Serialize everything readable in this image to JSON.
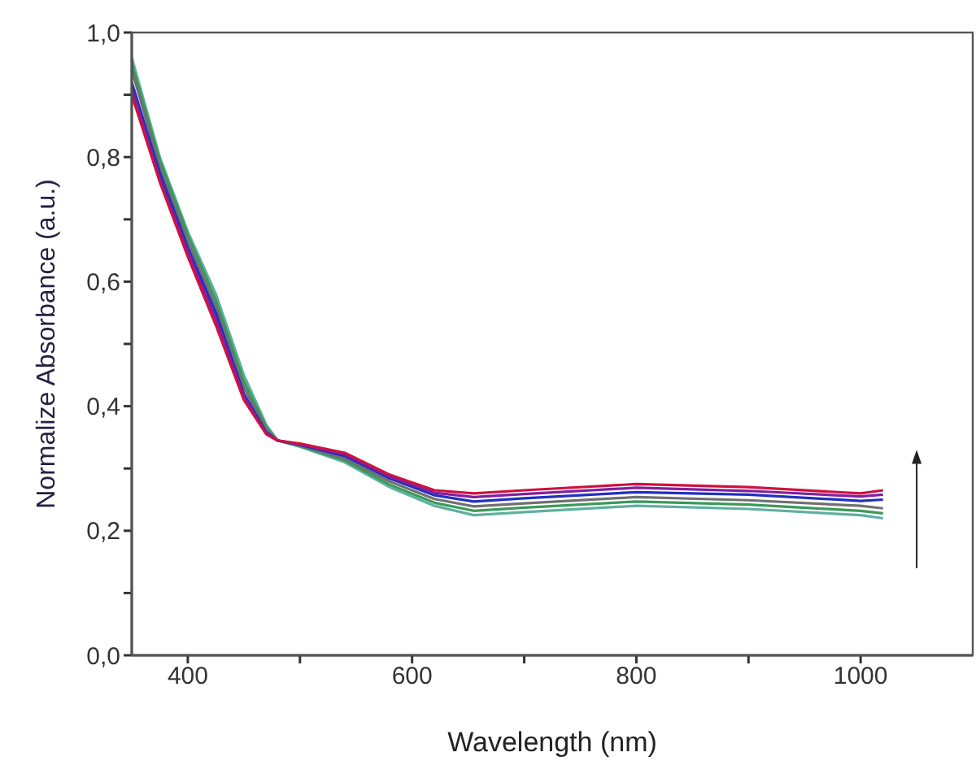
{
  "chart_data": {
    "type": "line",
    "xlabel": "Wavelength (nm)",
    "ylabel": "Normalize Absorbance (a.u.)",
    "x": [
      350,
      375,
      400,
      425,
      450,
      470,
      480,
      500,
      540,
      580,
      620,
      655,
      700,
      800,
      900,
      1000,
      1020
    ],
    "series": [
      {
        "color": "#5fb0a0",
        "values": [
          0.96,
          0.8,
          0.68,
          0.58,
          0.45,
          0.37,
          0.345,
          0.335,
          0.31,
          0.27,
          0.24,
          0.225,
          0.23,
          0.24,
          0.235,
          0.225,
          0.22
        ]
      },
      {
        "color": "#3a9a5a",
        "values": [
          0.95,
          0.795,
          0.675,
          0.57,
          0.44,
          0.366,
          0.345,
          0.336,
          0.313,
          0.274,
          0.245,
          0.232,
          0.237,
          0.247,
          0.242,
          0.232,
          0.228
        ]
      },
      {
        "color": "#707070",
        "values": [
          0.94,
          0.785,
          0.665,
          0.56,
          0.43,
          0.362,
          0.345,
          0.337,
          0.316,
          0.279,
          0.251,
          0.239,
          0.244,
          0.254,
          0.249,
          0.24,
          0.236
        ]
      },
      {
        "color": "#2030c0",
        "values": [
          0.92,
          0.775,
          0.655,
          0.55,
          0.42,
          0.358,
          0.345,
          0.338,
          0.32,
          0.284,
          0.257,
          0.247,
          0.252,
          0.262,
          0.258,
          0.248,
          0.25
        ]
      },
      {
        "color": "#8020a0",
        "values": [
          0.91,
          0.765,
          0.648,
          0.54,
          0.415,
          0.356,
          0.345,
          0.339,
          0.323,
          0.287,
          0.261,
          0.254,
          0.259,
          0.269,
          0.264,
          0.255,
          0.258
        ]
      },
      {
        "color": "#d01040",
        "values": [
          0.9,
          0.76,
          0.64,
          0.53,
          0.41,
          0.355,
          0.345,
          0.34,
          0.325,
          0.29,
          0.265,
          0.26,
          0.265,
          0.275,
          0.27,
          0.26,
          0.265
        ]
      }
    ],
    "xlim": [
      350,
      1100
    ],
    "xticks": [
      {
        "value": 400,
        "label": "400"
      },
      {
        "value": 500,
        "label": null
      },
      {
        "value": 600,
        "label": "600"
      },
      {
        "value": 700,
        "label": null
      },
      {
        "value": 800,
        "label": "800"
      },
      {
        "value": 900,
        "label": null
      },
      {
        "value": 1000,
        "label": "1000"
      }
    ],
    "ylim": [
      0,
      1
    ],
    "yticks": [
      {
        "value": 0,
        "label": "0,0"
      },
      {
        "value": 0.1,
        "label": null
      },
      {
        "value": 0.2,
        "label": "0,2"
      },
      {
        "value": 0.3,
        "label": null
      },
      {
        "value": 0.4,
        "label": "0,4"
      },
      {
        "value": 0.5,
        "label": null
      },
      {
        "value": 0.6,
        "label": "0,6"
      },
      {
        "value": 0.7,
        "label": null
      },
      {
        "value": 0.8,
        "label": "0,8"
      },
      {
        "value": 0.9,
        "label": null
      },
      {
        "value": 1,
        "label": "1,0"
      }
    ],
    "grid": false,
    "legend": false,
    "marker": "none",
    "line_style": "solid"
  }
}
